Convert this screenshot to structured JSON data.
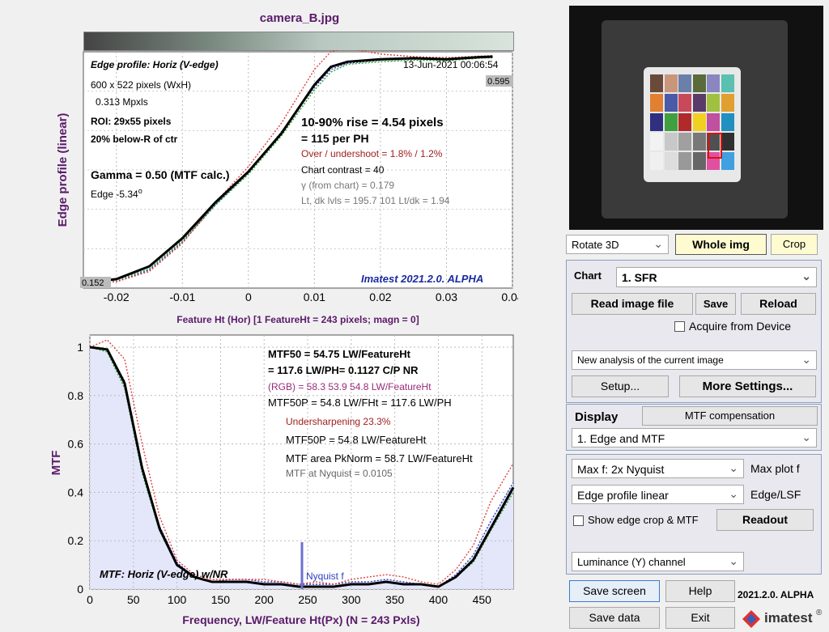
{
  "title": "camera_B.jpg",
  "edge_plot": {
    "heading": "Edge profile: Horiz (V-edge)",
    "timestamp": "13-Jun-2021 00:06:54",
    "size": "600 x 522 pixels (WxH)",
    "mpxls": "0.313 Mpxls",
    "roi": "ROI:  29x55 pixels",
    "roi_pos": "20% below-R of ctr",
    "gamma": "Gamma = 0.50 (MTF calc.)",
    "edge_angle": "Edge  -5.34",
    "edge_angle_sup": "o",
    "rise": "10-90% rise = 4.54 pixels",
    "per_ph": "=    115 per PH",
    "overshoot": "Over / undershoot =  1.8% /  1.2%",
    "contrast": "Chart contrast = 40",
    "gamma_chart": "γ (from chart) = 0.179",
    "levels": "Lt, dk lvls = 195.7  101  Lt/dk = 1.94",
    "brand": "Imatest 2021.2.0. ALPHA",
    "ylabel": "Edge profile (linear)",
    "xlabel": "Feature Ht (Hor)   [1 FeatureHt = 243 pixels;  magn = 0]",
    "hi_value": "0.595",
    "lo_value": "0.152"
  },
  "mtf_plot": {
    "mtf50": "MTF50 = 54.75 LW/FeatureHt",
    "mtf50_ph": "= 117.6 LW/PH= 0.1127 C/P  NR",
    "rgb": "(RGB) = 58.3  53.9  54.8 LW/FeatureHt",
    "mtf50p": "MTF50P = 54.8 LW/FHt = 117.6 LW/PH",
    "undersharp": "Undersharpening 23.3%",
    "mtf50p2": "MTF50P = 54.8 LW/FeatureHt",
    "area": "MTF area PkNorm = 58.7 LW/FeatureHt",
    "nyq_val": "MTF at Nyquist = 0.0105",
    "heading": "MTF: Horiz (V-edge) w/NR",
    "nyquist_label": "Nyquist f",
    "ylabel": "MTF",
    "xlabel": "Frequency, LW/Feature Ht(Px)  (N = 243 Pxls)"
  },
  "chart_data": [
    {
      "type": "line",
      "title": "camera_B.jpg",
      "ylabel": "Edge profile (linear)",
      "xlabel": "Feature Ht (Hor)   [1 FeatureHt = 243 pixels;  magn = 0]",
      "xlim": [
        -0.025,
        0.04
      ],
      "ylim": [
        0.152,
        0.595
      ],
      "xticks": [
        "-0.02",
        "-0.01",
        "0",
        "0.01",
        "0.02",
        "0.03",
        "0.04"
      ],
      "x": [
        -0.025,
        -0.02,
        -0.015,
        -0.01,
        -0.005,
        0,
        0.005,
        0.01,
        0.0125,
        0.015,
        0.02,
        0.025,
        0.03,
        0.035,
        0.037
      ],
      "series": [
        {
          "color": "#000000",
          "values": [
            0.152,
            0.16,
            0.185,
            0.24,
            0.31,
            0.37,
            0.445,
            0.54,
            0.575,
            0.585,
            0.59,
            0.592,
            0.59,
            0.594,
            0.595
          ]
        },
        {
          "color": "#e04040",
          "values": [
            0.152,
            0.155,
            0.175,
            0.23,
            0.31,
            0.38,
            0.465,
            0.57,
            0.605,
            0.612,
            0.6,
            0.595,
            0.593,
            0.596,
            0.597
          ]
        },
        {
          "color": "#20a020",
          "values": [
            0.152,
            0.158,
            0.18,
            0.235,
            0.305,
            0.365,
            0.44,
            0.53,
            0.565,
            0.58,
            0.585,
            0.588,
            0.587,
            0.592,
            0.593
          ]
        },
        {
          "color": "#3040c0",
          "values": [
            0.152,
            0.155,
            0.178,
            0.232,
            0.305,
            0.368,
            0.448,
            0.535,
            0.57,
            0.582,
            0.588,
            0.59,
            0.589,
            0.593,
            0.594
          ]
        }
      ]
    },
    {
      "type": "line",
      "ylabel": "MTF",
      "xlabel": "Frequency, LW/Feature Ht(Px)  (N = 243 Pxls)",
      "xlim": [
        0,
        486
      ],
      "ylim": [
        0,
        1.05
      ],
      "xticks": [
        "0",
        "50",
        "100",
        "150",
        "200",
        "250",
        "300",
        "350",
        "400",
        "450"
      ],
      "yticks": [
        "0",
        "0.2",
        "0.4",
        "0.6",
        "0.8",
        "1"
      ],
      "x": [
        0,
        20,
        40,
        60,
        80,
        100,
        120,
        140,
        160,
        180,
        200,
        220,
        240,
        260,
        280,
        300,
        320,
        340,
        360,
        380,
        400,
        420,
        440,
        460,
        486
      ],
      "series": [
        {
          "color": "#000000",
          "values": [
            1.0,
            0.99,
            0.85,
            0.5,
            0.25,
            0.1,
            0.05,
            0.03,
            0.03,
            0.03,
            0.02,
            0.02,
            0.01,
            0.01,
            0.01,
            0.02,
            0.02,
            0.03,
            0.02,
            0.02,
            0.01,
            0.05,
            0.12,
            0.25,
            0.42
          ]
        },
        {
          "color": "#e04040",
          "values": [
            1.0,
            1.03,
            0.95,
            0.6,
            0.3,
            0.12,
            0.06,
            0.04,
            0.04,
            0.04,
            0.04,
            0.03,
            0.02,
            0.03,
            0.02,
            0.04,
            0.05,
            0.06,
            0.05,
            0.03,
            0.02,
            0.08,
            0.18,
            0.36,
            0.52
          ]
        },
        {
          "color": "#20a020",
          "values": [
            1.0,
            0.98,
            0.83,
            0.48,
            0.24,
            0.1,
            0.05,
            0.03,
            0.03,
            0.03,
            0.02,
            0.02,
            0.01,
            0.01,
            0.01,
            0.02,
            0.02,
            0.03,
            0.02,
            0.02,
            0.01,
            0.05,
            0.11,
            0.24,
            0.4
          ]
        },
        {
          "color": "#3040c0",
          "values": [
            1.0,
            0.99,
            0.86,
            0.5,
            0.26,
            0.11,
            0.05,
            0.03,
            0.04,
            0.04,
            0.03,
            0.03,
            0.02,
            0.02,
            0.02,
            0.03,
            0.03,
            0.04,
            0.03,
            0.02,
            0.01,
            0.06,
            0.14,
            0.28,
            0.44
          ]
        }
      ]
    }
  ],
  "controls": {
    "rotate": "Rotate 3D",
    "whole_img": "Whole img",
    "crop": "Crop",
    "chart_label": "Chart",
    "chart_value": "1. SFR",
    "read_file": "Read image file",
    "save": "Save",
    "reload": "Reload",
    "acquire": "Acquire from Device",
    "analysis": "New analysis of the current image",
    "setup": "Setup...",
    "more_settings": "More Settings...",
    "display_label": "Display",
    "mtf_comp": "MTF compensation",
    "display_value": "1. Edge and MTF",
    "max_f": "Max f:   2x Nyquist",
    "max_plot": "Max plot f",
    "edge_profile": "Edge profile linear",
    "edge_lsf": "Edge/LSF",
    "show_crop": "Show edge crop & MTF",
    "readout": "Readout",
    "channel": "Luminance (Y) channel",
    "save_screen": "Save screen",
    "help": "Help",
    "version": "2021.2.0. ALPHA",
    "save_data": "Save data",
    "exit": "Exit",
    "logo_text": "imatest",
    "logo_reg": "®"
  }
}
